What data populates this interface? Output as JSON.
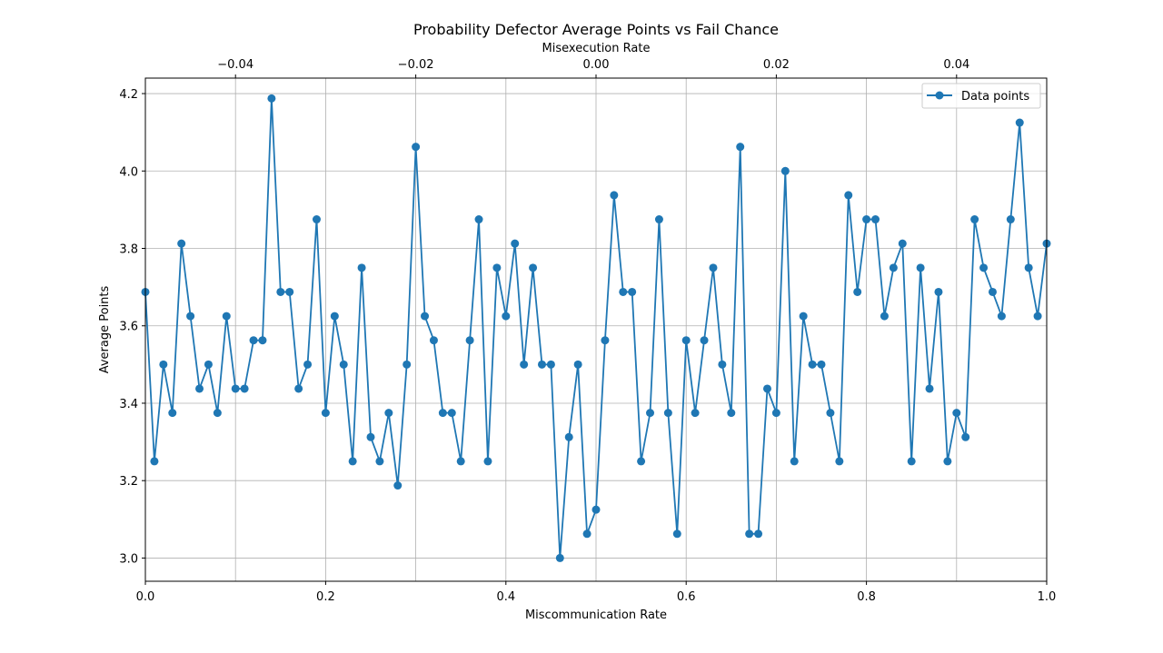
{
  "chart_data": {
    "type": "line",
    "title": "Probability Defector Average Points vs Fail Chance",
    "xlabel": "Miscommunication Rate",
    "ylabel": "Average Points",
    "secondary_xlabel": "Misexecution Rate",
    "xlim": [
      0,
      1
    ],
    "ylim": [
      2.94,
      4.24
    ],
    "secondary_xlim": [
      -0.05,
      0.05
    ],
    "x_ticks": [
      "0.0",
      "0.2",
      "0.4",
      "0.6",
      "0.8",
      "1.0"
    ],
    "y_ticks": [
      "3.0",
      "3.2",
      "3.4",
      "3.6",
      "3.8",
      "4.0",
      "4.2"
    ],
    "secondary_x_ticks": [
      "−0.04",
      "−0.02",
      "0.00",
      "0.02",
      "0.04"
    ],
    "grid": true,
    "legend": {
      "position": "top-right",
      "entries": [
        "Data points"
      ]
    },
    "series": [
      {
        "name": "Data points",
        "color": "#1f77b4",
        "marker": "circle",
        "x": [
          0.0,
          0.01,
          0.02,
          0.03,
          0.04,
          0.05,
          0.06,
          0.07,
          0.08,
          0.09,
          0.1,
          0.11,
          0.12,
          0.13,
          0.14,
          0.15,
          0.16,
          0.17,
          0.18,
          0.19,
          0.2,
          0.21,
          0.22,
          0.23,
          0.24,
          0.25,
          0.26,
          0.27,
          0.28,
          0.29,
          0.3,
          0.31,
          0.32,
          0.33,
          0.34,
          0.35,
          0.36,
          0.37,
          0.38,
          0.39,
          0.4,
          0.41,
          0.42,
          0.43,
          0.44,
          0.45,
          0.46,
          0.47,
          0.48,
          0.49,
          0.5,
          0.51,
          0.52,
          0.53,
          0.54,
          0.55,
          0.56,
          0.57,
          0.58,
          0.59,
          0.6,
          0.61,
          0.62,
          0.63,
          0.64,
          0.65,
          0.66,
          0.67,
          0.68,
          0.69,
          0.7,
          0.71,
          0.72,
          0.73,
          0.74,
          0.75,
          0.76,
          0.77,
          0.78,
          0.79,
          0.8,
          0.81,
          0.82,
          0.83,
          0.84,
          0.85,
          0.86,
          0.87,
          0.88,
          0.89,
          0.9,
          0.91,
          0.92,
          0.93,
          0.94,
          0.95,
          0.96,
          0.97,
          0.98,
          0.99,
          1.0
        ],
        "y": [
          3.6875,
          3.25,
          3.5,
          3.375,
          3.8125,
          3.625,
          3.4375,
          3.5,
          3.375,
          3.625,
          3.4375,
          3.4375,
          3.5625,
          3.5625,
          4.1875,
          3.6875,
          3.6875,
          3.4375,
          3.5,
          3.875,
          3.375,
          3.625,
          3.5,
          3.25,
          3.75,
          3.3125,
          3.25,
          3.375,
          3.1875,
          3.5,
          4.0625,
          3.625,
          3.5625,
          3.375,
          3.375,
          3.25,
          3.5625,
          3.875,
          3.25,
          3.75,
          3.625,
          3.8125,
          3.5,
          3.75,
          3.5,
          3.5,
          3.0,
          3.3125,
          3.5,
          3.0625,
          3.125,
          3.5625,
          3.9375,
          3.6875,
          3.6875,
          3.25,
          3.375,
          3.875,
          3.375,
          3.0625,
          3.5625,
          3.375,
          3.5625,
          3.75,
          3.5,
          3.375,
          4.0625,
          3.0625,
          3.0625,
          3.4375,
          3.375,
          4.0,
          3.25,
          3.625,
          3.5,
          3.5,
          3.375,
          3.25,
          3.9375,
          3.6875,
          3.875,
          3.875,
          3.625,
          3.75,
          3.8125,
          3.25,
          3.75,
          3.4375,
          3.6875,
          3.25,
          3.375,
          3.3125,
          3.875,
          3.75,
          3.6875,
          3.625,
          3.875,
          4.125,
          3.75,
          3.625,
          3.8125
        ]
      }
    ]
  }
}
